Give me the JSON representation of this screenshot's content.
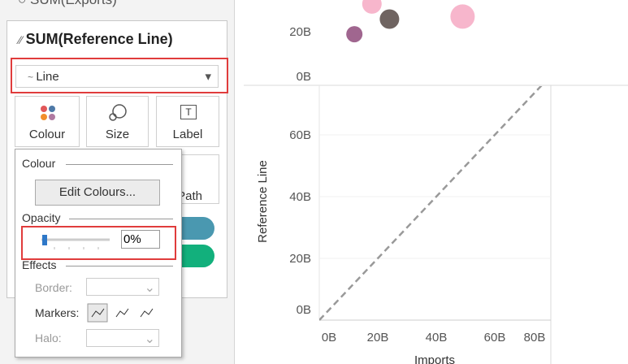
{
  "panel": {
    "prev_field": "SUM(Exports)",
    "field": "SUM(Reference Line)",
    "mark_type": "Line",
    "buttons": [
      "Colour",
      "Size",
      "Label",
      "Path"
    ],
    "popup": {
      "colour_heading": "Colour",
      "edit_button": "Edit Colours...",
      "opacity_heading": "Opacity",
      "opacity": "0%",
      "effects_heading": "Effects",
      "border": "Border:",
      "markers": "Markers:",
      "halo": "Halo:"
    }
  },
  "view": {
    "y_title": "Reference Line",
    "x_title": "Imports",
    "top_yticks": [
      {
        "value": 0,
        "label": "0B"
      },
      {
        "value": 20,
        "label": "20B"
      }
    ],
    "bottom_yticks": [
      {
        "value": 0,
        "label": "0B"
      },
      {
        "value": 20,
        "label": "20B"
      },
      {
        "value": 40,
        "label": "40B"
      },
      {
        "value": 60,
        "label": "60B"
      }
    ],
    "xticks": [
      {
        "value": 0,
        "label": "0B"
      },
      {
        "value": 20,
        "label": "20B"
      },
      {
        "value": 40,
        "label": "40B"
      },
      {
        "value": 60,
        "label": "60B"
      },
      {
        "value": 80,
        "label": "80B"
      }
    ],
    "points": {
      "x": [
        12,
        18,
        24,
        49
      ],
      "y": [
        19,
        31,
        25,
        26
      ],
      "colors": [
        "#a0668f",
        "#f7b6cc",
        "#6f6461",
        "#f7b6cc"
      ]
    },
    "reference_line": {
      "x": [
        0,
        76
      ],
      "y": [
        0,
        76
      ]
    }
  }
}
